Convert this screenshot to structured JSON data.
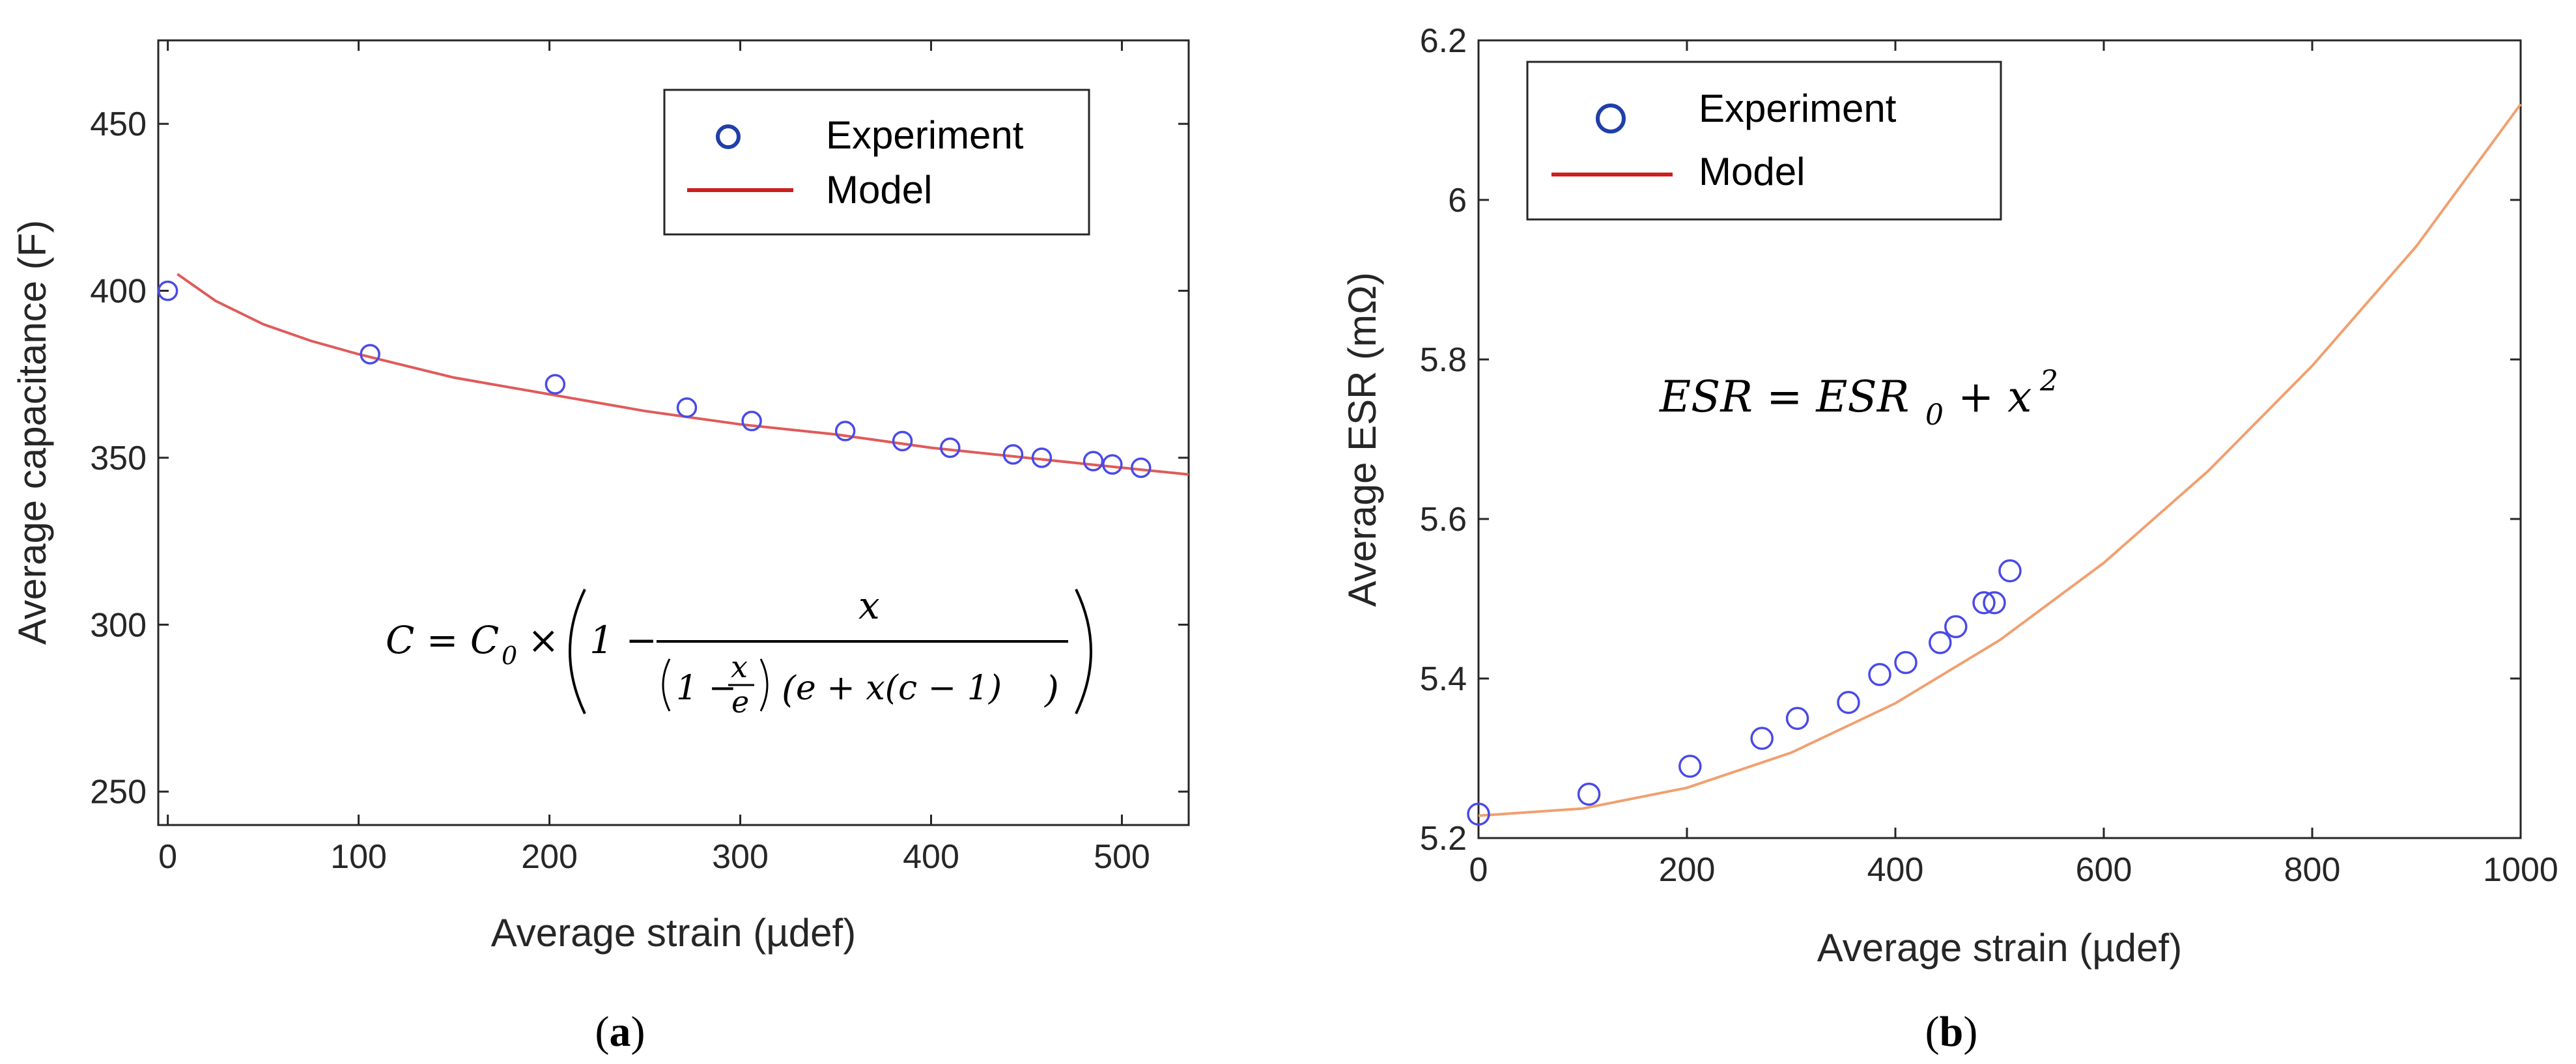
{
  "chart_data": [
    {
      "type": "scatter",
      "panel_label": "(a)",
      "panel_letter": "a",
      "xlabel": "Average strain (µdef)",
      "ylabel": "Average capacitance (F)",
      "xlim": [
        -5,
        535
      ],
      "ylim": [
        240,
        475
      ],
      "xticks": [
        "0",
        "100",
        "200",
        "300",
        "400",
        "500"
      ],
      "yticks": [
        "250",
        "300",
        "350",
        "400",
        "450"
      ],
      "legend": {
        "position": "top-right",
        "entries": [
          "Experiment",
          "Model"
        ]
      },
      "series": [
        {
          "name": "Experiment",
          "marker": "circle",
          "color": "#3a3ad8",
          "x": [
            0,
            106,
            203,
            272,
            306,
            355,
            385,
            410,
            443,
            458,
            485,
            495,
            510
          ],
          "y": [
            400,
            381,
            372,
            365,
            361,
            358,
            355,
            353,
            351,
            350,
            349,
            348,
            347
          ]
        },
        {
          "name": "Model",
          "line": true,
          "color": "#e23b3b",
          "x": [
            5,
            25,
            50,
            75,
            100,
            150,
            200,
            250,
            300,
            350,
            400,
            450,
            500,
            535
          ],
          "y": [
            405,
            397,
            390,
            385,
            381,
            374,
            369,
            364,
            360,
            357,
            353,
            350,
            347,
            345
          ]
        }
      ],
      "annotation": "C = C₀ × (1 − x / ((1 − x/e)(e + x(c − 1))))",
      "annotation_parts": {
        "lhs": "C = C",
        "sub": "0",
        "times": "×",
        "one_minus": "1 −",
        "numerator": "x",
        "den_a": "1 −",
        "den_frac_num": "x",
        "den_frac_den": "e",
        "den_b": "e + x(c − 1)"
      }
    },
    {
      "type": "scatter",
      "panel_label": "(b)",
      "panel_letter": "b",
      "xlabel": "Average strain (µdef)",
      "ylabel": "Average ESR (mΩ)",
      "xlim": [
        0,
        1000
      ],
      "ylim": [
        5.2,
        6.2
      ],
      "xticks": [
        "0",
        "200",
        "400",
        "600",
        "800",
        "1000"
      ],
      "yticks": [
        "5.2",
        "5.4",
        "5.6",
        "5.8",
        "6",
        "6.2"
      ],
      "legend": {
        "position": "top-left",
        "entries": [
          "Experiment",
          "Model"
        ]
      },
      "series": [
        {
          "name": "Experiment",
          "marker": "circle",
          "color": "#3a3ad8",
          "x": [
            0,
            106,
            203,
            272,
            306,
            355,
            385,
            410,
            443,
            458,
            485,
            495,
            510
          ],
          "y": [
            5.23,
            5.255,
            5.29,
            5.325,
            5.35,
            5.37,
            5.405,
            5.42,
            5.445,
            5.465,
            5.495,
            5.495,
            5.535
          ]
        },
        {
          "name": "Model",
          "line": true,
          "color": "#f0a070",
          "x": [
            0,
            100,
            200,
            300,
            400,
            500,
            600,
            700,
            800,
            900,
            1000
          ],
          "y": [
            5.228,
            5.237,
            5.263,
            5.307,
            5.369,
            5.448,
            5.545,
            5.66,
            5.792,
            5.942,
            6.12
          ]
        }
      ],
      "annotation": "ESR = ESR₀ + x²",
      "annotation_parts": {
        "lhs": "ESR = ESR",
        "sub": "0",
        "rhs": "+ x",
        "sup": "2"
      }
    }
  ]
}
